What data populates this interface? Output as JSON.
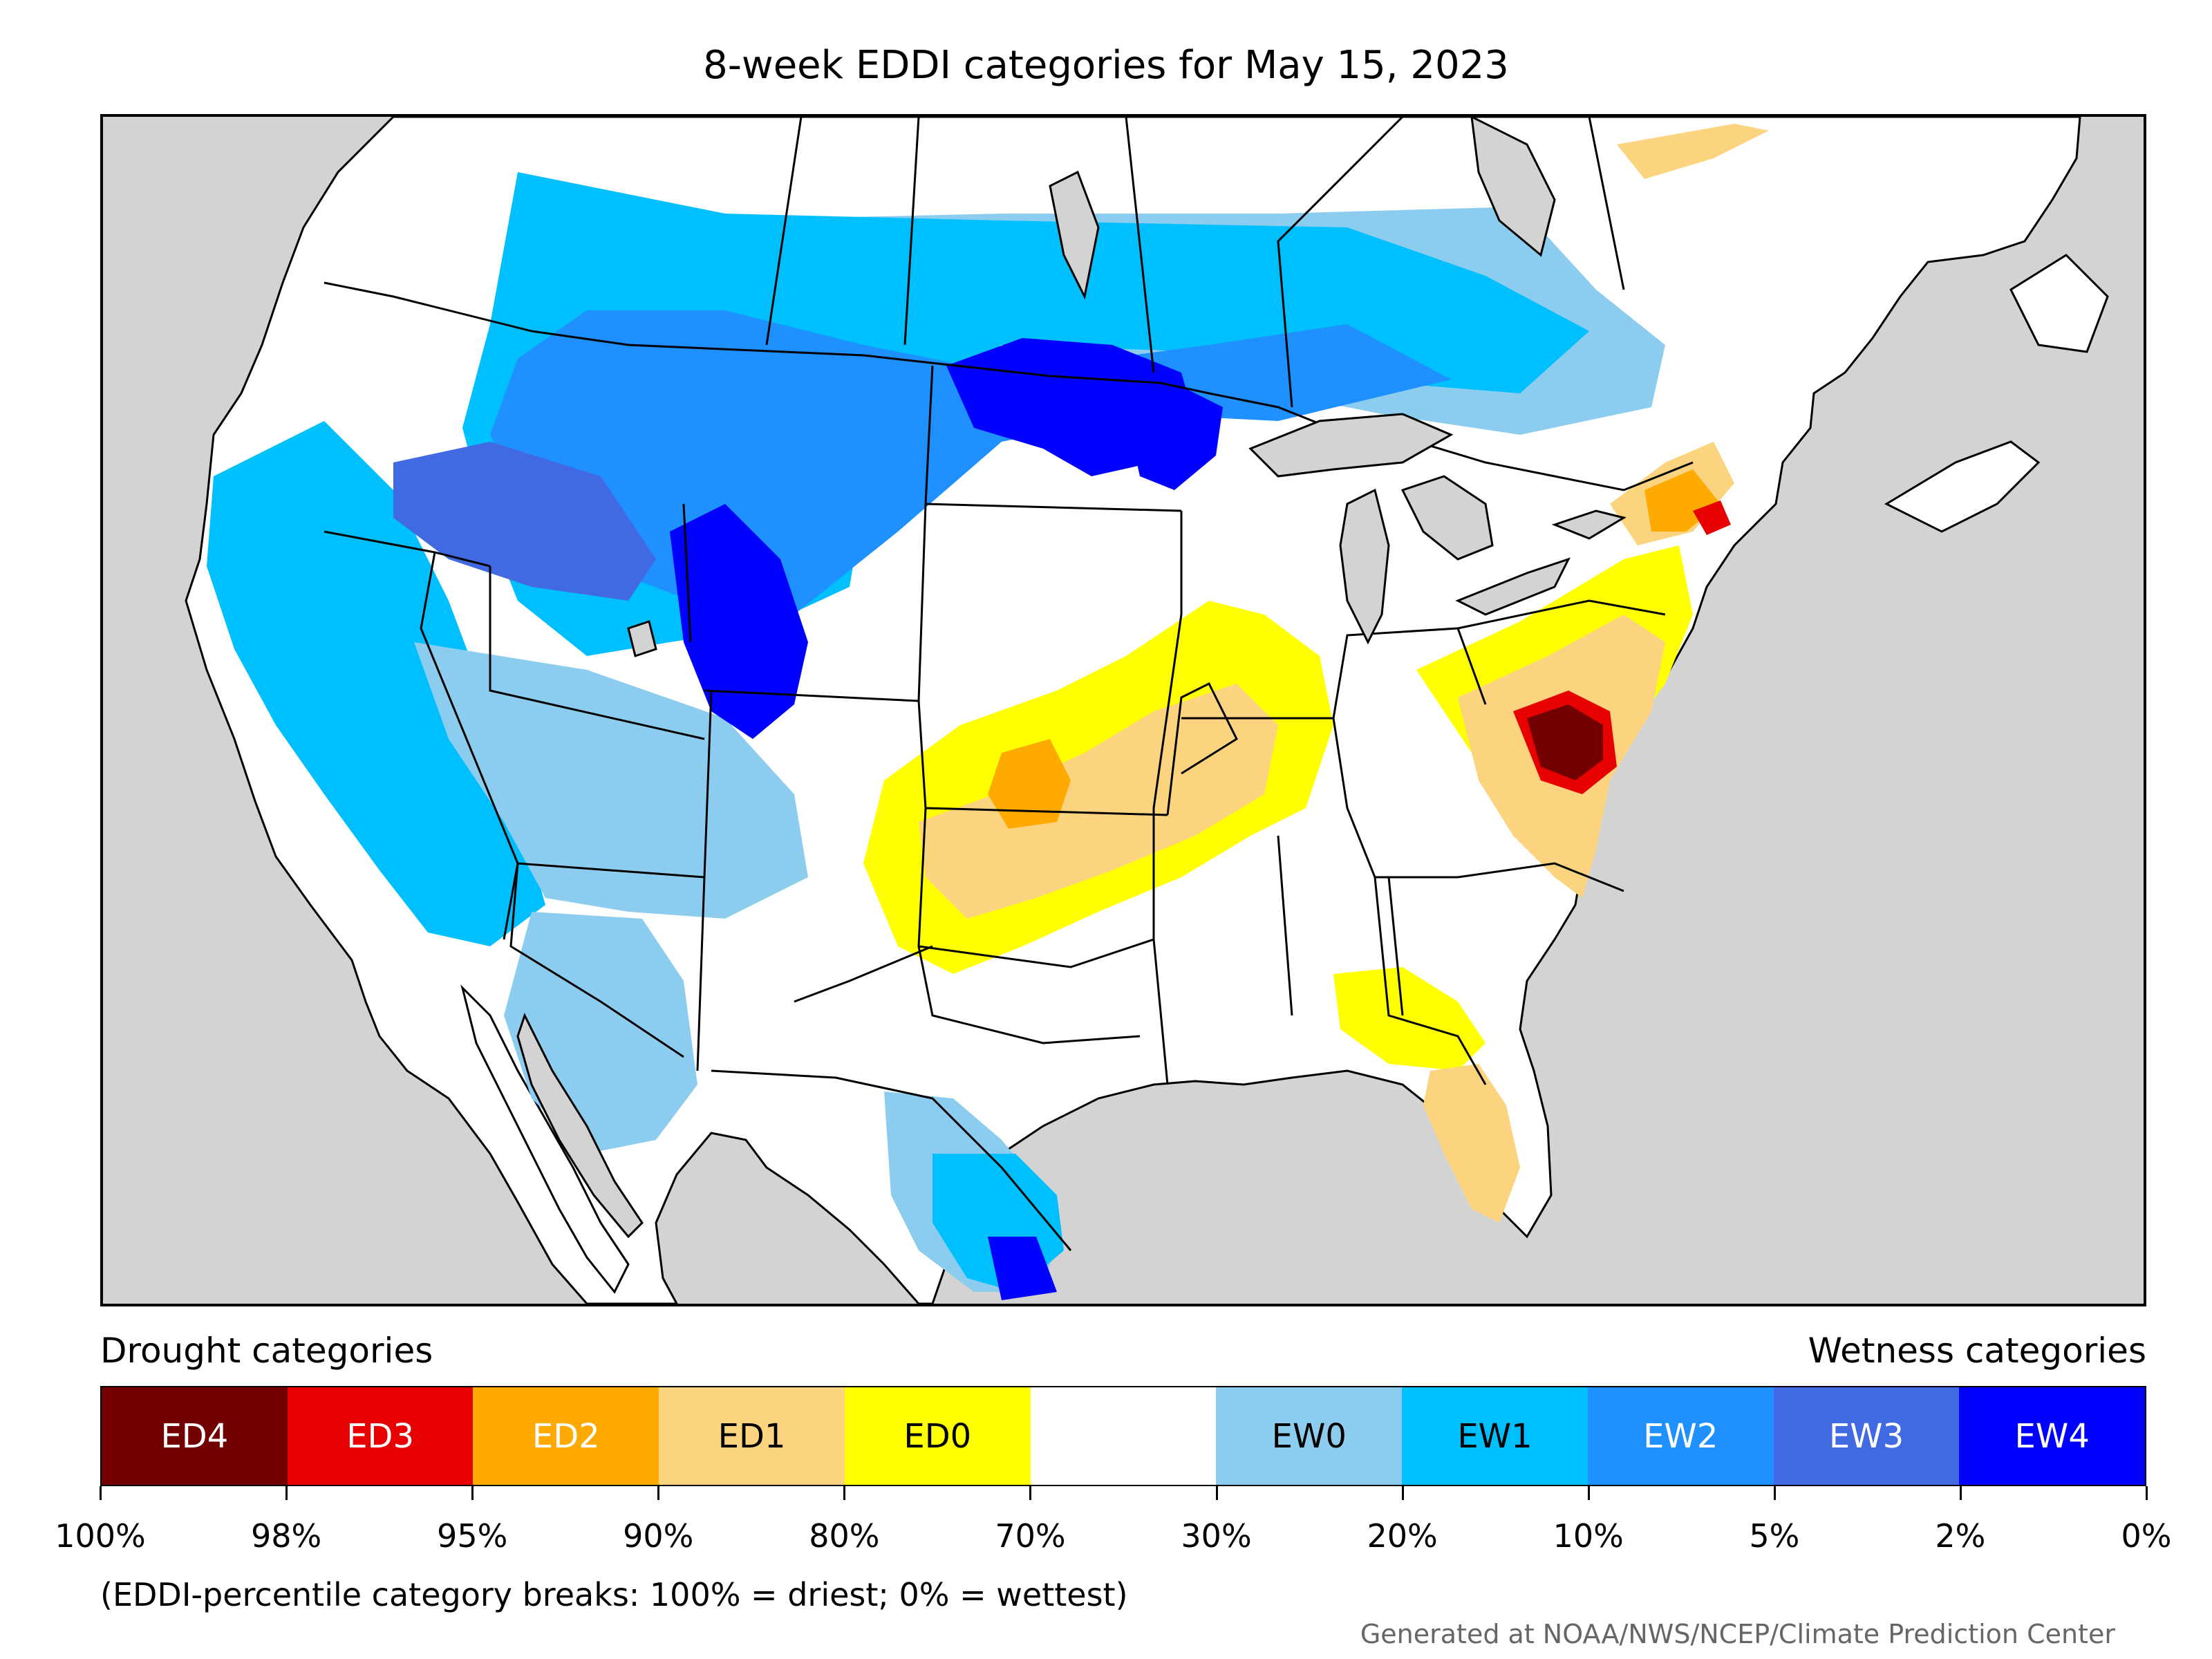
{
  "title": "8-week EDDI categories for May 15, 2023",
  "legend_left_title": "Drought categories",
  "legend_right_title": "Wetness categories",
  "categories": [
    {
      "label": "ED4",
      "color": "#730000",
      "text_color": "#ffffff"
    },
    {
      "label": "ED3",
      "color": "#e60000",
      "text_color": "#ffffff"
    },
    {
      "label": "ED2",
      "color": "#ffaa00",
      "text_color": "#ffffff"
    },
    {
      "label": "ED1",
      "color": "#fcd37f",
      "text_color": "#000000"
    },
    {
      "label": "ED0",
      "color": "#ffff00",
      "text_color": "#000000"
    },
    {
      "label": "",
      "color": "#ffffff",
      "text_color": "#000000"
    },
    {
      "label": "EW0",
      "color": "#8ccdef",
      "text_color": "#000000"
    },
    {
      "label": "EW1",
      "color": "#00bfff",
      "text_color": "#000000"
    },
    {
      "label": "EW2",
      "color": "#1e90ff",
      "text_color": "#ffffff"
    },
    {
      "label": "EW3",
      "color": "#4169e1",
      "text_color": "#ffffff"
    },
    {
      "label": "EW4",
      "color": "#0000ff",
      "text_color": "#ffffff"
    }
  ],
  "breaks": [
    "100%",
    "98%",
    "95%",
    "90%",
    "80%",
    "70%",
    "30%",
    "20%",
    "10%",
    "5%",
    "2%",
    "0%"
  ],
  "note": "(EDDI-percentile category breaks: 100% = driest; 0% = wettest)",
  "credit": "Generated at NOAA/NWS/NCEP/Climate Prediction Center",
  "map_colors": {
    "ocean": "#d3d3d3",
    "land": "#ffffff",
    "lakes": "#d3d3d3"
  }
}
